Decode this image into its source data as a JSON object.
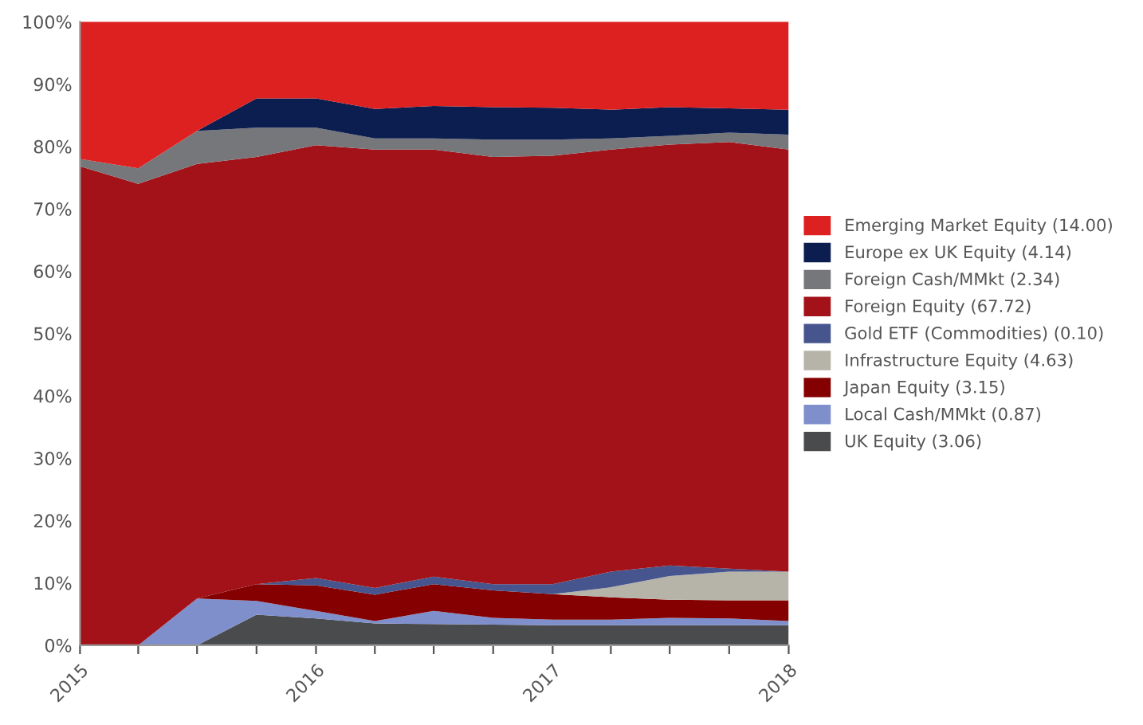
{
  "chart_data": {
    "type": "area",
    "stacked": true,
    "x": [
      "2015-01-01",
      "2015-04-01",
      "2015-07-01",
      "2015-10-01",
      "2016-01-01",
      "2016-04-01",
      "2016-07-01",
      "2016-10-01",
      "2017-01-01",
      "2017-04-01",
      "2017-07-01",
      "2017-10-01",
      "2018-01-01"
    ],
    "series": [
      {
        "name": "UK Equity (3.06)",
        "color": "#4a4b4d",
        "values": [
          0,
          0,
          0,
          4.9,
          4.3,
          3.5,
          3.4,
          3.3,
          3.2,
          3.2,
          3.2,
          3.2,
          3.2
        ]
      },
      {
        "name": "Local Cash/MMkt (0.87)",
        "color": "#7f8fcc",
        "values": [
          0,
          0,
          7.5,
          2.2,
          1.2,
          0.4,
          2.1,
          1.1,
          0.9,
          0.9,
          1.2,
          1.1,
          0.7
        ]
      },
      {
        "name": "Japan Equity (3.15)",
        "color": "#850000",
        "values": [
          0,
          0,
          0,
          2.7,
          4.1,
          4.2,
          4.3,
          4.4,
          4.1,
          3.6,
          2.9,
          2.9,
          3.3
        ]
      },
      {
        "name": "Infrastructure Equity (4.63)",
        "color": "#b6b4a8",
        "values": [
          0,
          0,
          0,
          0,
          0,
          0,
          0,
          0,
          0,
          1.6,
          3.8,
          4.6,
          4.6
        ]
      },
      {
        "name": "Gold ETF (Commodities) (0.10)",
        "color": "#46558e",
        "values": [
          0,
          0,
          0,
          0,
          1.2,
          1.1,
          1.2,
          1.0,
          1.6,
          2.5,
          1.7,
          0.5,
          0
        ]
      },
      {
        "name": "Foreign Equity (67.72)",
        "color": "#a31219",
        "values": [
          76.8,
          74,
          69.7,
          68.5,
          69.4,
          70.3,
          68.5,
          68.5,
          68.7,
          67.7,
          67.5,
          68.4,
          67.7
        ]
      },
      {
        "name": "Foreign Cash/MMkt (2.34)",
        "color": "#76777b",
        "values": [
          1.2,
          2.5,
          5.3,
          4.7,
          2.8,
          1.8,
          1.8,
          2.8,
          2.6,
          1.8,
          1.4,
          1.5,
          2.4
        ]
      },
      {
        "name": "Europe ex UK Equity (4.14)",
        "color": "#0c1d50",
        "values": [
          0,
          0,
          0,
          4.7,
          4.7,
          4.7,
          5.2,
          5.2,
          5.1,
          4.6,
          4.6,
          3.9,
          4.0
        ]
      },
      {
        "name": "Emerging Market Equity (14.00)",
        "color": "#dd2020",
        "values": [
          22,
          23.5,
          17.5,
          12.3,
          12.3,
          14,
          13.5,
          13.7,
          13.8,
          14.1,
          13.7,
          13.9,
          14.1
        ]
      }
    ],
    "xlim": [
      "2015-01-01",
      "2018-01-01"
    ],
    "xticks": [
      {
        "value": "2015-01-01",
        "label": "2015"
      },
      {
        "value": "2015-04-01",
        "label": null
      },
      {
        "value": "2015-07-01",
        "label": null
      },
      {
        "value": "2015-10-01",
        "label": null
      },
      {
        "value": "2016-01-01",
        "label": "2016"
      },
      {
        "value": "2016-04-01",
        "label": null
      },
      {
        "value": "2016-07-01",
        "label": null
      },
      {
        "value": "2016-10-01",
        "label": null
      },
      {
        "value": "2017-01-01",
        "label": "2017"
      },
      {
        "value": "2017-04-01",
        "label": null
      },
      {
        "value": "2017-07-01",
        "label": null
      },
      {
        "value": "2017-10-01",
        "label": null
      },
      {
        "value": "2018-01-01",
        "label": "2018"
      }
    ],
    "ylim": [
      0,
      100
    ],
    "yticks": [
      {
        "value": 0,
        "label": "0%"
      },
      {
        "value": 10,
        "label": "10%"
      },
      {
        "value": 20,
        "label": "20%"
      },
      {
        "value": 30,
        "label": "30%"
      },
      {
        "value": 40,
        "label": "40%"
      },
      {
        "value": 50,
        "label": "50%"
      },
      {
        "value": 60,
        "label": "60%"
      },
      {
        "value": 70,
        "label": "70%"
      },
      {
        "value": 80,
        "label": "80%"
      },
      {
        "value": 90,
        "label": "90%"
      },
      {
        "value": 100,
        "label": "100%"
      }
    ],
    "grid": false,
    "legend": "right"
  }
}
